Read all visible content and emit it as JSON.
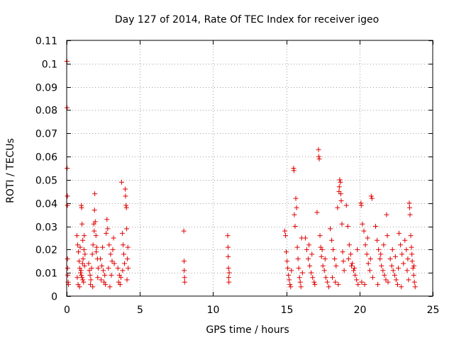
{
  "chart_data": {
    "type": "scatter",
    "title": "Day 127 of 2014, Rate Of TEC Index for receiver igeo",
    "xlabel": "GPS time / hours",
    "ylabel": "ROTI / TECUs",
    "xlim": [
      0,
      25
    ],
    "ylim": [
      0,
      0.11
    ],
    "xticks": [
      0,
      5,
      10,
      15,
      20,
      25
    ],
    "xtick_labels": [
      "0",
      "5",
      "10",
      "15",
      "20",
      "25"
    ],
    "yticks": [
      0,
      0.01,
      0.02,
      0.03,
      0.04,
      0.05,
      0.06,
      0.07,
      0.08,
      0.09,
      0.1,
      0.11
    ],
    "ytick_labels": [
      "0",
      "0.01",
      "0.02",
      "0.03",
      "0.04",
      "0.05",
      "0.06",
      "0.07",
      "0.08",
      "0.09",
      "0.1",
      "0.11"
    ],
    "grid": true,
    "marker": "+",
    "color": "#e00000",
    "series": [
      {
        "name": "ROTI",
        "points": [
          [
            0.02,
            0.101
          ],
          [
            0.03,
            0.081
          ],
          [
            0.03,
            0.055
          ],
          [
            0.05,
            0.043
          ],
          [
            0.05,
            0.039
          ],
          [
            0.06,
            0.016
          ],
          [
            0.07,
            0.012
          ],
          [
            0.08,
            0.009
          ],
          [
            0.1,
            0.006
          ],
          [
            0.12,
            0.005
          ],
          [
            0.7,
            0.026
          ],
          [
            0.75,
            0.022
          ],
          [
            0.8,
            0.019
          ],
          [
            0.85,
            0.015
          ],
          [
            0.9,
            0.012
          ],
          [
            0.95,
            0.01
          ],
          [
            1.0,
            0.009
          ],
          [
            1.05,
            0.008
          ],
          [
            1.1,
            0.007
          ],
          [
            1.15,
            0.006
          ],
          [
            0.78,
            0.005
          ],
          [
            0.88,
            0.004
          ],
          [
            0.98,
            0.011
          ],
          [
            1.08,
            0.014
          ],
          [
            1.18,
            0.02
          ],
          [
            1.0,
            0.039
          ],
          [
            1.02,
            0.038
          ],
          [
            1.05,
            0.031
          ],
          [
            1.1,
            0.024
          ],
          [
            1.2,
            0.026
          ],
          [
            1.25,
            0.018
          ],
          [
            0.92,
            0.021
          ],
          [
            1.12,
            0.016
          ],
          [
            1.22,
            0.013
          ],
          [
            0.72,
            0.008
          ],
          [
            1.5,
            0.014
          ],
          [
            1.55,
            0.011
          ],
          [
            1.6,
            0.009
          ],
          [
            1.65,
            0.007
          ],
          [
            1.7,
            0.012
          ],
          [
            1.75,
            0.018
          ],
          [
            1.8,
            0.022
          ],
          [
            1.85,
            0.031
          ],
          [
            1.9,
            0.037
          ],
          [
            1.92,
            0.044
          ],
          [
            1.95,
            0.032
          ],
          [
            2.0,
            0.026
          ],
          [
            2.05,
            0.021
          ],
          [
            2.1,
            0.016
          ],
          [
            2.15,
            0.012
          ],
          [
            1.62,
            0.005
          ],
          [
            1.78,
            0.004
          ],
          [
            1.88,
            0.028
          ],
          [
            2.02,
            0.019
          ],
          [
            2.12,
            0.008
          ],
          [
            2.3,
            0.016
          ],
          [
            2.4,
            0.013
          ],
          [
            2.5,
            0.011
          ],
          [
            2.6,
            0.009
          ],
          [
            2.7,
            0.027
          ],
          [
            2.75,
            0.033
          ],
          [
            2.8,
            0.029
          ],
          [
            2.9,
            0.022
          ],
          [
            3.0,
            0.018
          ],
          [
            3.1,
            0.015
          ],
          [
            2.35,
            0.007
          ],
          [
            2.55,
            0.006
          ],
          [
            2.65,
            0.005
          ],
          [
            2.85,
            0.012
          ],
          [
            3.05,
            0.009
          ],
          [
            3.15,
            0.02
          ],
          [
            3.2,
            0.025
          ],
          [
            3.25,
            0.014
          ],
          [
            2.45,
            0.021
          ],
          [
            2.95,
            0.004
          ],
          [
            3.5,
            0.012
          ],
          [
            3.6,
            0.009
          ],
          [
            3.7,
            0.008
          ],
          [
            3.75,
            0.049
          ],
          [
            3.8,
            0.027
          ],
          [
            3.85,
            0.022
          ],
          [
            3.9,
            0.018
          ],
          [
            3.95,
            0.014
          ],
          [
            4.0,
            0.046
          ],
          [
            4.02,
            0.043
          ],
          [
            4.05,
            0.039
          ],
          [
            4.08,
            0.038
          ],
          [
            4.1,
            0.029
          ],
          [
            4.15,
            0.016
          ],
          [
            4.2,
            0.012
          ],
          [
            3.55,
            0.006
          ],
          [
            3.65,
            0.005
          ],
          [
            3.82,
            0.011
          ],
          [
            4.12,
            0.007
          ],
          [
            4.18,
            0.021
          ],
          [
            8.0,
            0.028
          ],
          [
            8.02,
            0.015
          ],
          [
            8.03,
            0.011
          ],
          [
            8.05,
            0.008
          ],
          [
            8.06,
            0.006
          ],
          [
            11.0,
            0.026
          ],
          [
            11.02,
            0.021
          ],
          [
            11.03,
            0.017
          ],
          [
            11.05,
            0.012
          ],
          [
            11.06,
            0.008
          ],
          [
            11.08,
            0.006
          ],
          [
            11.1,
            0.01
          ],
          [
            14.9,
            0.028
          ],
          [
            14.95,
            0.026
          ],
          [
            15.0,
            0.019
          ],
          [
            15.05,
            0.015
          ],
          [
            15.1,
            0.012
          ],
          [
            15.15,
            0.009
          ],
          [
            15.2,
            0.007
          ],
          [
            15.25,
            0.005
          ],
          [
            15.3,
            0.004
          ],
          [
            15.35,
            0.011
          ],
          [
            15.5,
            0.055
          ],
          [
            15.52,
            0.054
          ],
          [
            15.55,
            0.035
          ],
          [
            15.6,
            0.03
          ],
          [
            15.65,
            0.042
          ],
          [
            15.7,
            0.038
          ],
          [
            15.75,
            0.021
          ],
          [
            15.8,
            0.016
          ],
          [
            15.85,
            0.012
          ],
          [
            15.9,
            0.008
          ],
          [
            15.95,
            0.006
          ],
          [
            16.0,
            0.004
          ],
          [
            16.05,
            0.025
          ],
          [
            16.1,
            0.01
          ],
          [
            16.3,
            0.025
          ],
          [
            16.4,
            0.02
          ],
          [
            16.5,
            0.016
          ],
          [
            16.6,
            0.013
          ],
          [
            16.7,
            0.01
          ],
          [
            16.8,
            0.008
          ],
          [
            16.9,
            0.006
          ],
          [
            16.95,
            0.005
          ],
          [
            16.55,
            0.022
          ],
          [
            16.75,
            0.018
          ],
          [
            17.2,
            0.063
          ],
          [
            17.22,
            0.06
          ],
          [
            17.25,
            0.059
          ],
          [
            17.1,
            0.036
          ],
          [
            17.3,
            0.026
          ],
          [
            17.35,
            0.021
          ],
          [
            17.4,
            0.017
          ],
          [
            17.5,
            0.013
          ],
          [
            17.6,
            0.011
          ],
          [
            17.7,
            0.008
          ],
          [
            17.8,
            0.006
          ],
          [
            17.9,
            0.004
          ],
          [
            17.45,
            0.02
          ],
          [
            17.65,
            0.016
          ],
          [
            18.0,
            0.029
          ],
          [
            18.1,
            0.024
          ],
          [
            18.2,
            0.02
          ],
          [
            18.3,
            0.016
          ],
          [
            18.4,
            0.013
          ],
          [
            18.5,
            0.038
          ],
          [
            18.6,
            0.045
          ],
          [
            18.62,
            0.047
          ],
          [
            18.65,
            0.05
          ],
          [
            18.7,
            0.049
          ],
          [
            18.72,
            0.044
          ],
          [
            18.75,
            0.041
          ],
          [
            18.8,
            0.031
          ],
          [
            18.85,
            0.019
          ],
          [
            18.9,
            0.015
          ],
          [
            18.95,
            0.011
          ],
          [
            18.15,
            0.008
          ],
          [
            18.35,
            0.006
          ],
          [
            18.55,
            0.005
          ],
          [
            19.1,
            0.039
          ],
          [
            19.2,
            0.03
          ],
          [
            19.3,
            0.022
          ],
          [
            19.4,
            0.018
          ],
          [
            19.5,
            0.014
          ],
          [
            19.6,
            0.011
          ],
          [
            19.7,
            0.009
          ],
          [
            19.8,
            0.007
          ],
          [
            19.9,
            0.005
          ],
          [
            19.25,
            0.016
          ],
          [
            19.45,
            0.013
          ],
          [
            19.65,
            0.012
          ],
          [
            19.85,
            0.02
          ],
          [
            20.1,
            0.04
          ],
          [
            20.12,
            0.039
          ],
          [
            20.2,
            0.031
          ],
          [
            20.3,
            0.028
          ],
          [
            20.4,
            0.022
          ],
          [
            20.5,
            0.018
          ],
          [
            20.6,
            0.014
          ],
          [
            20.7,
            0.011
          ],
          [
            20.8,
            0.043
          ],
          [
            20.85,
            0.042
          ],
          [
            20.9,
            0.008
          ],
          [
            20.15,
            0.006
          ],
          [
            20.35,
            0.005
          ],
          [
            20.55,
            0.025
          ],
          [
            20.75,
            0.016
          ],
          [
            21.1,
            0.03
          ],
          [
            21.2,
            0.024
          ],
          [
            21.3,
            0.02
          ],
          [
            21.4,
            0.016
          ],
          [
            21.5,
            0.013
          ],
          [
            21.6,
            0.011
          ],
          [
            21.7,
            0.009
          ],
          [
            21.8,
            0.007
          ],
          [
            21.85,
            0.035
          ],
          [
            21.9,
            0.026
          ],
          [
            21.95,
            0.006
          ],
          [
            21.25,
            0.005
          ],
          [
            21.45,
            0.018
          ],
          [
            21.65,
            0.022
          ],
          [
            22.1,
            0.016
          ],
          [
            22.2,
            0.013
          ],
          [
            22.3,
            0.011
          ],
          [
            22.4,
            0.009
          ],
          [
            22.5,
            0.007
          ],
          [
            22.6,
            0.005
          ],
          [
            22.7,
            0.027
          ],
          [
            22.8,
            0.022
          ],
          [
            22.9,
            0.018
          ],
          [
            23.0,
            0.014
          ],
          [
            22.25,
            0.02
          ],
          [
            22.45,
            0.017
          ],
          [
            22.65,
            0.012
          ],
          [
            22.85,
            0.004
          ],
          [
            23.1,
            0.024
          ],
          [
            23.2,
            0.02
          ],
          [
            23.3,
            0.016
          ],
          [
            23.4,
            0.04
          ],
          [
            23.42,
            0.038
          ],
          [
            23.45,
            0.035
          ],
          [
            23.5,
            0.026
          ],
          [
            23.55,
            0.021
          ],
          [
            23.6,
            0.015
          ],
          [
            23.65,
            0.012
          ],
          [
            23.7,
            0.009
          ],
          [
            23.75,
            0.006
          ],
          [
            23.8,
            0.004
          ],
          [
            23.25,
            0.011
          ],
          [
            23.35,
            0.007
          ],
          [
            23.58,
            0.018
          ],
          [
            23.72,
            0.013
          ]
        ]
      }
    ]
  }
}
